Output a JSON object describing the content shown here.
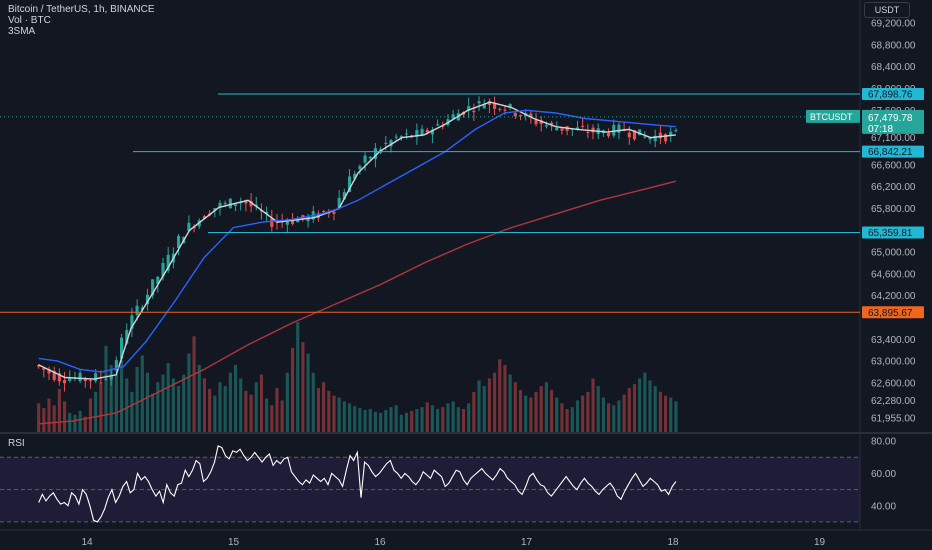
{
  "header": {
    "symbol_line": "Bitcoin / TetherUS, 1h, BINANCE",
    "volume_label": "Vol · BTC",
    "indicator_label": "3SMA"
  },
  "currency_button": "USDT",
  "rsi_label": "RSI",
  "colors": {
    "background": "#131722",
    "up": "#26a69a",
    "down": "#ef5350",
    "sma_fast": "#d1d4dc",
    "sma_mid": "#2962ff",
    "sma_slow": "#b2363b",
    "level_line": "#22b8d4",
    "orange_line": "#f0661e",
    "axis_text": "#b2b5be"
  },
  "chart_data": [
    {
      "type": "candlestick",
      "symbol": "BTCUSDT",
      "price_scale": {
        "ticks": [
          "69,200.00",
          "68,800.00",
          "68,400.00",
          "68,000.00",
          "67,600.00",
          "67,100.00",
          "66,600.00",
          "66,200.00",
          "65,800.00",
          "65,000.00",
          "64,600.00",
          "64,200.00",
          "63,400.00",
          "63,000.00",
          "62,600.00",
          "62,280.00",
          "61,955.00"
        ],
        "ylim": [
          61700,
          69550
        ]
      },
      "time_axis": {
        "ticks": [
          "14",
          "15",
          "16",
          "17",
          "18",
          "19"
        ],
        "days": [
          14,
          15,
          16,
          17,
          18,
          19
        ]
      },
      "last_price": {
        "symbol": "BTCUSDT",
        "price": "67,479.78",
        "countdown": "07:18",
        "value": 67479.78
      },
      "horizontal_levels": [
        {
          "label": "67,898.76",
          "value": 67898.76,
          "color": "#22b8d4"
        },
        {
          "label": "66,842.21",
          "value": 66842.21,
          "color": "#22b8d4"
        },
        {
          "label": "65,359.81",
          "value": 65359.81,
          "color": "#22b8d4"
        },
        {
          "label": "63,895.67",
          "value": 63895.67,
          "color": "#f0661e"
        }
      ],
      "moving_averages": [
        {
          "points": [
            [
              13.67,
              62930
            ],
            [
              13.85,
              62700
            ],
            [
              14.05,
              62670
            ],
            [
              14.2,
              62750
            ],
            [
              14.3,
              63600
            ],
            [
              14.45,
              64250
            ],
            [
              14.55,
              64700
            ],
            [
              14.7,
              65400
            ],
            [
              14.9,
              65820
            ],
            [
              15.1,
              65950
            ],
            [
              15.3,
              65550
            ],
            [
              15.55,
              65630
            ],
            [
              15.72,
              65800
            ],
            [
              15.85,
              66450
            ],
            [
              16.0,
              66850
            ],
            [
              16.15,
              67100
            ],
            [
              16.3,
              67150
            ],
            [
              16.45,
              67350
            ],
            [
              16.6,
              67600
            ],
            [
              16.75,
              67750
            ],
            [
              16.9,
              67650
            ],
            [
              17.05,
              67450
            ],
            [
              17.2,
              67300
            ],
            [
              17.35,
              67250
            ],
            [
              17.55,
              67200
            ],
            [
              17.7,
              67250
            ],
            [
              17.85,
              67100
            ],
            [
              18.02,
              67150
            ]
          ]
        },
        {
          "points": [
            [
              13.67,
              63050
            ],
            [
              13.8,
              63000
            ],
            [
              13.95,
              62850
            ],
            [
              14.1,
              62800
            ],
            [
              14.25,
              62900
            ],
            [
              14.4,
              63350
            ],
            [
              14.6,
              64100
            ],
            [
              14.8,
              64900
            ],
            [
              15.0,
              65450
            ],
            [
              15.2,
              65550
            ],
            [
              15.4,
              65600
            ],
            [
              15.6,
              65700
            ],
            [
              15.72,
              65800
            ],
            [
              15.85,
              65950
            ],
            [
              16.05,
              66250
            ],
            [
              16.25,
              66550
            ],
            [
              16.45,
              66850
            ],
            [
              16.65,
              67250
            ],
            [
              16.85,
              67550
            ],
            [
              17.0,
              67600
            ],
            [
              17.2,
              67550
            ],
            [
              17.4,
              67450
            ],
            [
              17.6,
              67400
            ],
            [
              17.8,
              67350
            ],
            [
              18.02,
              67300
            ]
          ]
        },
        {
          "points": [
            [
              13.67,
              61850
            ],
            [
              13.9,
              61900
            ],
            [
              14.2,
              62050
            ],
            [
              14.5,
              62450
            ],
            [
              14.8,
              62850
            ],
            [
              15.1,
              63300
            ],
            [
              15.4,
              63700
            ],
            [
              15.7,
              64050
            ],
            [
              16.0,
              64400
            ],
            [
              16.3,
              64800
            ],
            [
              16.6,
              65150
            ],
            [
              16.9,
              65450
            ],
            [
              17.2,
              65700
            ],
            [
              17.5,
              65950
            ],
            [
              17.8,
              66150
            ],
            [
              18.02,
              66300
            ]
          ]
        }
      ],
      "volume_pane": {
        "volume_btc": [
          300,
          250,
          350,
          280,
          450,
          320,
          200,
          180,
          220,
          160,
          350,
          420,
          520,
          900,
          700,
          600,
          750,
          560,
          420,
          680,
          800,
          620,
          400,
          520,
          600,
          720,
          560,
          480,
          600,
          820,
          1000,
          700,
          560,
          450,
          380,
          520,
          480,
          620,
          700,
          560,
          430,
          390,
          520,
          600,
          350,
          280,
          460,
          330,
          620,
          880,
          1150,
          940,
          820,
          620,
          460,
          520,
          430,
          380,
          360,
          320,
          300,
          270,
          250,
          230,
          240,
          210,
          200,
          230,
          260,
          280,
          180,
          200,
          220,
          240,
          260,
          310,
          280,
          240,
          260,
          300,
          320,
          260,
          240,
          300,
          420,
          540,
          480,
          560,
          620,
          760,
          700,
          600,
          520,
          440,
          380,
          360,
          420,
          480,
          520,
          440,
          360,
          300,
          240,
          260,
          330,
          380,
          420,
          560,
          480,
          360,
          300,
          280,
          330,
          390,
          460,
          500,
          560,
          620,
          540,
          480,
          420,
          380,
          360,
          320
        ]
      }
    },
    {
      "type": "line",
      "name": "RSI",
      "ticks": [
        "80.00",
        "60.00",
        "40.00"
      ],
      "ylim": [
        25,
        85
      ],
      "band": [
        30,
        70
      ],
      "midline": 50,
      "values": [
        42,
        47,
        43,
        46,
        48,
        44,
        41,
        42,
        40,
        48,
        46,
        41,
        50,
        47,
        40,
        31,
        30,
        33,
        38,
        45,
        50,
        42,
        46,
        52,
        55,
        48,
        50,
        60,
        56,
        58,
        55,
        50,
        46,
        49,
        42,
        53,
        48,
        46,
        53,
        54,
        62,
        58,
        62,
        68,
        66,
        55,
        57,
        61,
        67,
        77,
        76,
        71,
        69,
        74,
        73,
        75,
        71,
        68,
        70,
        73,
        70,
        67,
        70,
        72,
        65,
        68,
        66,
        69,
        70,
        61,
        58,
        55,
        53,
        56,
        54,
        59,
        57,
        55,
        57,
        53,
        60,
        58,
        56,
        52,
        62,
        71,
        68,
        73,
        45,
        67,
        65,
        61,
        58,
        60,
        63,
        66,
        68,
        62,
        60,
        57,
        60,
        58,
        55,
        53,
        56,
        61,
        59,
        57,
        62,
        60,
        58,
        52,
        54,
        58,
        62,
        61,
        56,
        53,
        57,
        59,
        61,
        63,
        60,
        58,
        56,
        59,
        63,
        61,
        57,
        55,
        53,
        49,
        47,
        52,
        58,
        60,
        56,
        53,
        52,
        48,
        46,
        49,
        52,
        55,
        58,
        55,
        52,
        50,
        54,
        57,
        54,
        52,
        49,
        47,
        50,
        52,
        54,
        51,
        46,
        44,
        49,
        53,
        57,
        60,
        56,
        52,
        54,
        57,
        55,
        53,
        49,
        50,
        47,
        52,
        55
      ]
    }
  ]
}
